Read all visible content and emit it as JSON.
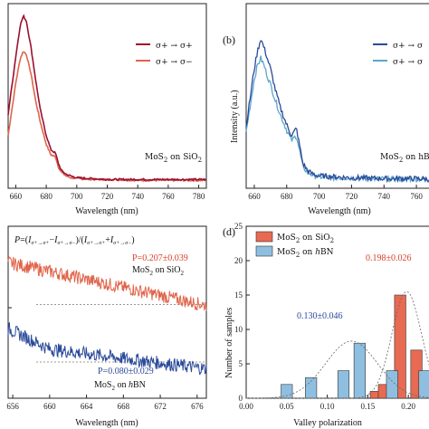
{
  "panels": {
    "a": {
      "letter": "",
      "xlabel": "Wavelength (nm)",
      "ylabel": "",
      "xticks": [
        "660",
        "680",
        "700",
        "720",
        "740",
        "760",
        "780"
      ],
      "legend": [
        "σ+ → σ+",
        "σ+ → σ−"
      ],
      "sample_label_pre": "MoS",
      "sample_label_sub": "2",
      "sample_label_post": " on SiO",
      "sample_label_sub2": "2"
    },
    "b": {
      "letter": "(b)",
      "xlabel": "Wavelength (nm)",
      "ylabel": "Intensity (a.u.)",
      "xticks": [
        "660",
        "680",
        "700",
        "720",
        "740",
        "760"
      ],
      "legend": [
        "σ+ → σ",
        "σ+ → σ"
      ],
      "sample_label_pre": "MoS",
      "sample_label_sub": "2",
      "sample_label_post": " on hBN"
    },
    "c": {
      "letter": "",
      "xlabel": "Wavelength (nm)",
      "xticks": [
        "656",
        "660",
        "664",
        "668",
        "672",
        "676"
      ],
      "formula": "P=(Iσ+→σ+−Iσ+→σ−)/(Iσ+→σ++Iσ+→σ−)",
      "p_sio2": "P=0.207±0.039",
      "p_hbn": "P=0.080±0.029",
      "label_sio2": "MoS2 on SiO2",
      "label_hbn": "MoS2 on hBN"
    },
    "d": {
      "letter": "(d)",
      "xlabel": "Valley polarization",
      "ylabel": "Number of samples",
      "xticks": [
        "0.00",
        "0.05",
        "0.10",
        "0.15",
        "0.20"
      ],
      "yticks": [
        "0",
        "5",
        "10",
        "15",
        "20",
        "25"
      ],
      "legend": [
        "MoS2 on SiO2",
        "MoS2 on hBN"
      ],
      "ann_hbn": "0.130±0.046",
      "ann_sio2": "0.198±0.026"
    }
  },
  "colors": {
    "sio2_dark": "#9b1030",
    "sio2_light": "#e0644a",
    "hbn_dark": "#2a4a9a",
    "hbn_light": "#5aa6c8",
    "bar_red": "#e86a52",
    "bar_blue": "#8fbfe0"
  },
  "chart_data": [
    {
      "type": "line",
      "panel": "a",
      "xlabel": "Wavelength (nm)",
      "xlim": [
        655,
        785
      ],
      "series": [
        {
          "name": "σ+ → σ+",
          "x": [
            655,
            660,
            663,
            665,
            667,
            670,
            673,
            676,
            680,
            683,
            686,
            688,
            690,
            693,
            696,
            700,
            710,
            720,
            740,
            760,
            785
          ],
          "y": [
            0.42,
            0.75,
            0.93,
            0.98,
            0.95,
            0.8,
            0.62,
            0.45,
            0.3,
            0.22,
            0.2,
            0.14,
            0.1,
            0.08,
            0.07,
            0.06,
            0.055,
            0.05,
            0.05,
            0.05,
            0.05
          ]
        },
        {
          "name": "σ+ → σ−",
          "x": [
            655,
            660,
            663,
            665,
            667,
            670,
            673,
            676,
            680,
            683,
            686,
            688,
            690,
            693,
            696,
            700,
            710,
            720,
            740,
            760,
            785
          ],
          "y": [
            0.3,
            0.6,
            0.74,
            0.78,
            0.76,
            0.65,
            0.5,
            0.38,
            0.25,
            0.19,
            0.18,
            0.12,
            0.09,
            0.07,
            0.06,
            0.055,
            0.05,
            0.05,
            0.045,
            0.045,
            0.045
          ]
        }
      ]
    },
    {
      "type": "line",
      "panel": "b",
      "xlabel": "Wavelength (nm)",
      "ylabel": "Intensity (a.u.)",
      "xlim": [
        655,
        770
      ],
      "series": [
        {
          "name": "σ+ → σ",
          "x": [
            655,
            658,
            660,
            662,
            664,
            666,
            668,
            670,
            673,
            676,
            680,
            683,
            686,
            688,
            690,
            693,
            696,
            700,
            710,
            720,
            740,
            760,
            770
          ],
          "y": [
            0.35,
            0.55,
            0.68,
            0.78,
            0.85,
            0.8,
            0.74,
            0.68,
            0.56,
            0.46,
            0.36,
            0.3,
            0.34,
            0.24,
            0.14,
            0.1,
            0.08,
            0.07,
            0.065,
            0.06,
            0.055,
            0.055,
            0.05
          ]
        },
        {
          "name": "σ+ → σ",
          "x": [
            655,
            658,
            660,
            662,
            664,
            666,
            668,
            670,
            673,
            676,
            680,
            683,
            686,
            688,
            690,
            693,
            696,
            700,
            710,
            720,
            740,
            760,
            770
          ],
          "y": [
            0.32,
            0.5,
            0.62,
            0.7,
            0.74,
            0.7,
            0.64,
            0.59,
            0.5,
            0.42,
            0.33,
            0.27,
            0.3,
            0.21,
            0.12,
            0.09,
            0.075,
            0.065,
            0.06,
            0.058,
            0.053,
            0.052,
            0.05
          ]
        }
      ]
    },
    {
      "type": "line",
      "panel": "c",
      "xlabel": "Wavelength (nm)",
      "xlim": [
        655.5,
        677
      ],
      "series": [
        {
          "name": "MoS2 on SiO2",
          "x": [
            655.5,
            677
          ],
          "y": [
            0.3,
            0.205
          ]
        },
        {
          "name": "MoS2 on hBN",
          "x": [
            655.5,
            677
          ],
          "y": [
            0.12,
            0.065
          ]
        }
      ],
      "reference_lines": [
        0.207,
        0.08
      ]
    },
    {
      "type": "bar",
      "panel": "d",
      "xlabel": "Valley polarization",
      "ylabel": "Number of samples",
      "xlim": [
        0.0,
        0.23
      ],
      "ylim": [
        0,
        25
      ],
      "series": [
        {
          "name": "MoS2 on SiO2",
          "x": [
            0.16,
            0.17,
            0.19,
            0.21
          ],
          "values": [
            1,
            2,
            15,
            7
          ]
        },
        {
          "name": "MoS2 on hBN",
          "x": [
            0.05,
            0.08,
            0.12,
            0.14,
            0.18,
            0.22
          ],
          "values": [
            2,
            3,
            4,
            8,
            4,
            4
          ]
        }
      ]
    }
  ]
}
